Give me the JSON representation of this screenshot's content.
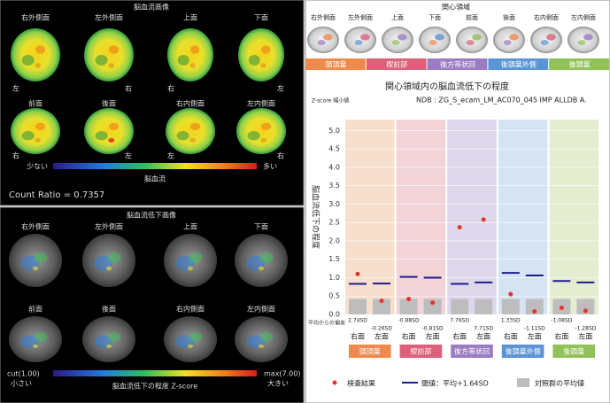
{
  "brain_images": {
    "title": "脳血流画像",
    "views": [
      "右外側面",
      "左外側面",
      "上面",
      "下面",
      "前面",
      "後面",
      "右内側面",
      "左内側面"
    ],
    "sides": [
      "左",
      "右",
      "右",
      "左",
      "右",
      "左",
      "左",
      "右"
    ],
    "colorbar_low": "少ない",
    "colorbar_high": "多い",
    "colorbar_label": "脳血流",
    "count_ratio": "Count Ratio = 0.7357"
  },
  "decrease_images": {
    "title": "脳血流低下画像",
    "views": [
      "右外側面",
      "左外側面",
      "上面",
      "下面",
      "前面",
      "後面",
      "右内側面",
      "左内側面"
    ],
    "cut_label": "cut(1.00)",
    "low": "小さい",
    "max_label": "max(7.00)",
    "high": "大きい",
    "colorbar_label": "脳血流低下の程度  Z-score"
  },
  "roi": {
    "title": "関心領域",
    "views": [
      "右外側面",
      "左外側面",
      "上面",
      "下面",
      "前面",
      "後面",
      "右内側面",
      "左内側面"
    ],
    "regions": [
      "頭頂葉",
      "楔前部",
      "後方帯状回",
      "後頭葉外側",
      "後頭葉"
    ],
    "region_colors": [
      "#ef8a4c",
      "#dd5f78",
      "#9b7cc3",
      "#5a94d5",
      "#91c159"
    ],
    "region_bg": [
      "#f7dfcd",
      "#f1d3d8",
      "#ded7ec",
      "#d6e3f2",
      "#e4edcf"
    ]
  },
  "chart_data": {
    "type": "dot",
    "title": "関心領域内の脳血流低下の程度",
    "subtitle": "NDB : ZG_S_ecam_LM_AC070_045 IMP ALLDB A.",
    "note": "Z-score 縮小値",
    "ylabel": "脳血流低下の程度",
    "categories": [
      "右面",
      "左面",
      "右面",
      "左面",
      "右面",
      "左面",
      "右面",
      "左面",
      "右面",
      "左面"
    ],
    "series": [
      {
        "name": "検査結果",
        "color": "#e8332a",
        "marker": "circle",
        "values": [
          1.1,
          0.37,
          0.42,
          0.32,
          2.37,
          2.58,
          0.55,
          0.08,
          0.18,
          0.1
        ]
      },
      {
        "name": "閾値：平均+1.64SD",
        "color": "#1c1c8c",
        "marker": "line",
        "values": [
          0.83,
          0.84,
          1.02,
          1.0,
          0.83,
          0.87,
          1.13,
          1.06,
          0.91,
          0.87
        ]
      },
      {
        "name": "対照群の平均値",
        "color": "#bdbdbd",
        "marker": "bar",
        "values": [
          0.42,
          0.42,
          0.42,
          0.42,
          0.42,
          0.42,
          0.42,
          0.42,
          0.42,
          0.42
        ]
      }
    ],
    "deviation_title": "平均からの偏差",
    "deviation_labels": [
      "2.74SD",
      "-0.26SD",
      "-0.88SD",
      "-0.81SD",
      "7.76SD",
      "7.71SD",
      "1.33SD",
      "-1.11SD",
      "-1.08SD",
      "-1.28SD"
    ],
    "ylim": [
      0,
      5.3
    ],
    "yticks": [
      {
        "value": 0,
        "label": "0.0"
      },
      {
        "value": 0.5,
        "label": "0.5"
      },
      {
        "value": 1,
        "label": "1.0"
      },
      {
        "value": 1.5,
        "label": "1.5"
      },
      {
        "value": 2,
        "label": "2.0"
      },
      {
        "value": 2.5,
        "label": "2.5"
      },
      {
        "value": 3,
        "label": "3.0"
      },
      {
        "value": 3.5,
        "label": "3.5"
      },
      {
        "value": 4,
        "label": "4.0"
      },
      {
        "value": 4.5,
        "label": "4.5"
      },
      {
        "value": 5,
        "label": "5.0"
      }
    ]
  }
}
